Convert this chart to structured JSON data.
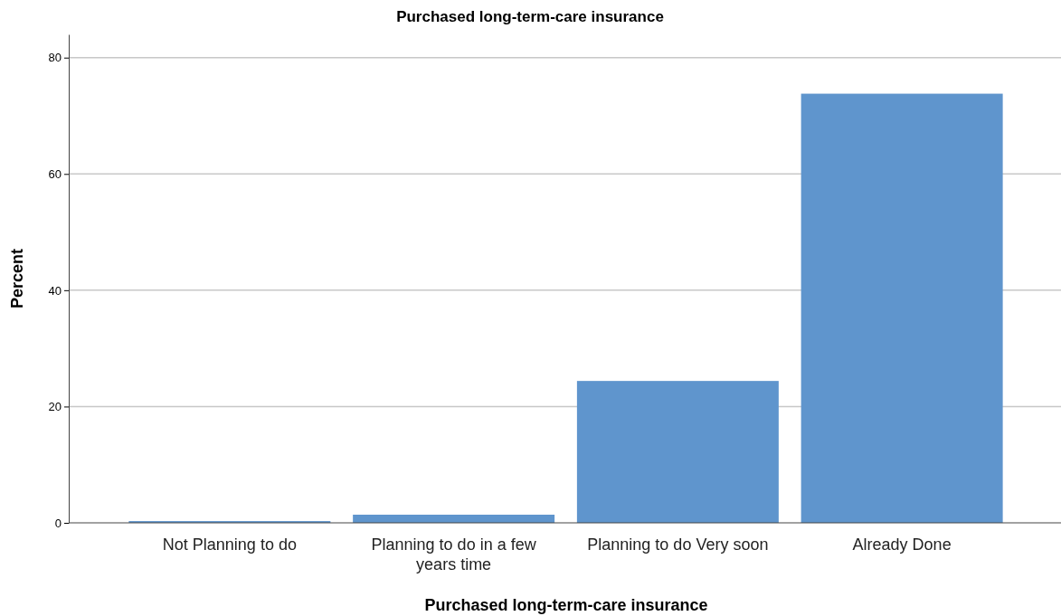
{
  "chart_data": {
    "type": "bar",
    "title": "Purchased long-term-care insurance",
    "xlabel": "Purchased long-term-care insurance",
    "ylabel": "Percent",
    "categories": [
      "Not Planning to do",
      "Planning to do in a few years time",
      "Planning to do Very soon",
      "Already Done"
    ],
    "values": [
      0.3,
      1.4,
      24.4,
      73.8
    ],
    "color": "#5f95cd",
    "ylim": [
      0,
      84
    ],
    "yticks": [
      0,
      20,
      40,
      60,
      80
    ],
    "grid": "y"
  }
}
